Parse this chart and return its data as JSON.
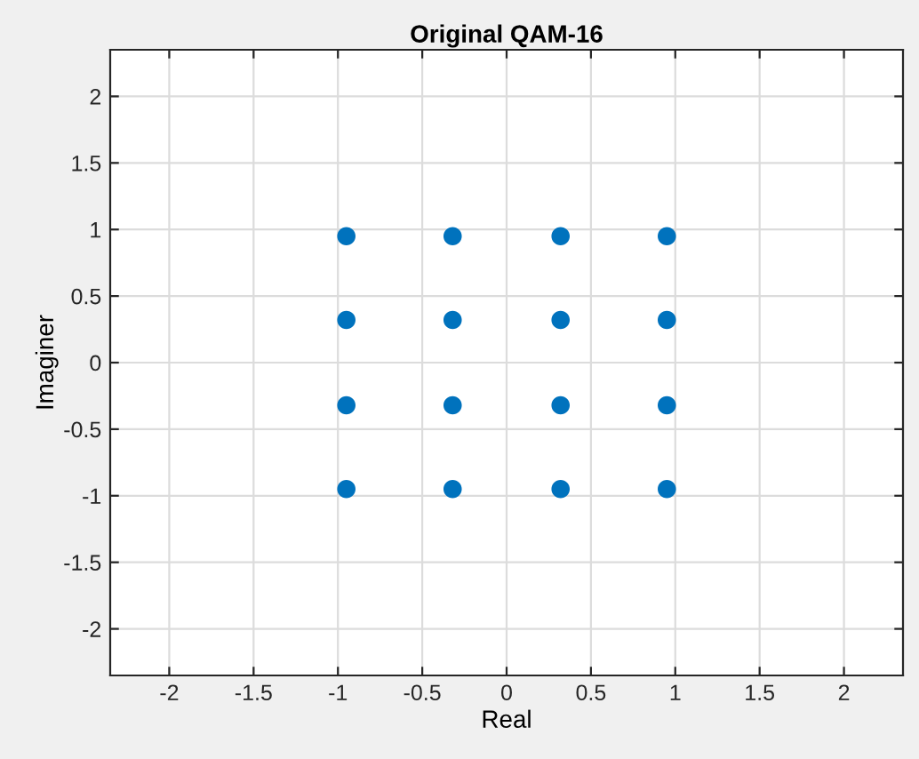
{
  "chart_data": {
    "type": "scatter",
    "title": "Original QAM-16",
    "xlabel": "Real",
    "ylabel": "Imaginer",
    "series": [
      {
        "color": "#0072bd",
        "x": [
          -0.95,
          -0.95,
          -0.95,
          -0.95,
          -0.32,
          -0.32,
          -0.32,
          -0.32,
          0.32,
          0.32,
          0.32,
          0.32,
          0.95,
          0.95,
          0.95,
          0.95
        ],
        "values": [
          0.95,
          0.32,
          -0.32,
          -0.95,
          0.95,
          0.32,
          -0.32,
          -0.95,
          0.95,
          0.32,
          -0.32,
          -0.95,
          0.95,
          0.32,
          -0.32,
          -0.95
        ]
      }
    ],
    "xlim": [
      -2.35,
      2.35
    ],
    "ylim": [
      -2.35,
      2.35
    ],
    "xticks": [
      -2,
      -1.5,
      -1,
      -0.5,
      0,
      0.5,
      1,
      1.5,
      2
    ],
    "yticks": [
      -2,
      -1.5,
      -1,
      -0.5,
      0,
      0.5,
      1,
      1.5,
      2
    ],
    "grid": true,
    "marker": "circle"
  }
}
